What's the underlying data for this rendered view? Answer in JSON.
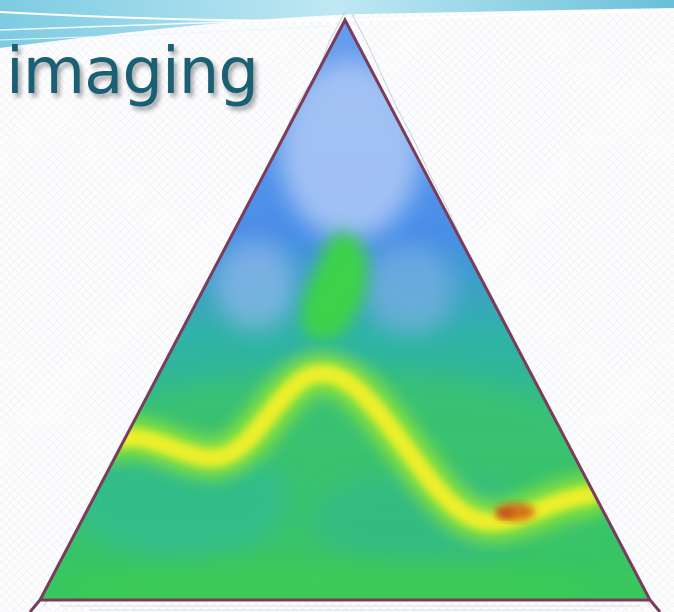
{
  "slide": {
    "title": "imaging"
  },
  "figure": {
    "type": "ternary-density-map",
    "colors": {
      "low": "#5d95ee",
      "mid": "#2fb59c",
      "high": "#43d845",
      "peak": "#ecef2a",
      "max": "#d35b18",
      "border": "#7a3c5a"
    }
  },
  "theme": {
    "title_color": "#1b5f75",
    "wave_colors": [
      "#9ddcec",
      "#5fbfd8",
      "#c6ecf6"
    ]
  }
}
